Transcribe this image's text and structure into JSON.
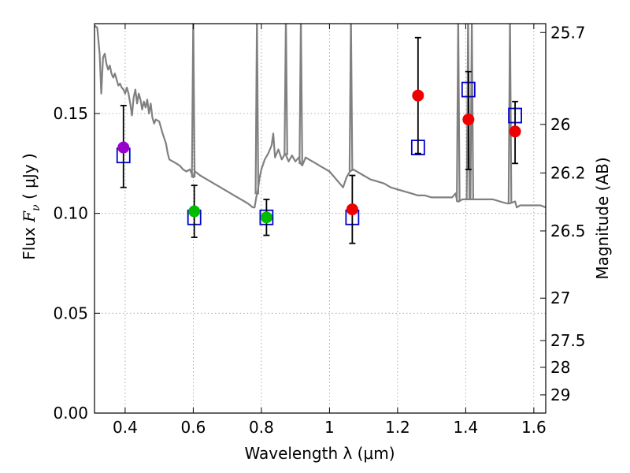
{
  "chart_data": {
    "type": "scatter",
    "xlabel": "Wavelength  λ (μm)",
    "ylabel_prefix": "Flux  ",
    "ylabel_math": "F",
    "ylabel_sub": "ν",
    "ylabel_suffix": " ( μJy )",
    "y2label": "Magnitude (AB)",
    "xlim": [
      0.31,
      1.635
    ],
    "ylim": [
      0.0,
      0.195
    ],
    "grid": true,
    "xticks": [
      0.4,
      0.6,
      0.8,
      1.0,
      1.2,
      1.4,
      1.6
    ],
    "xtick_labels": [
      "0.4",
      "0.6",
      "0.8",
      "1",
      "1.2",
      "1.4",
      "1.6"
    ],
    "yticks": [
      0.0,
      0.05,
      0.1,
      0.15
    ],
    "ytick_labels": [
      "0.00",
      "0.05",
      "0.10",
      "0.15"
    ],
    "magnitude_ticks": [
      25.7,
      26,
      26.2,
      26.5,
      27,
      27.5,
      28,
      29
    ],
    "magnitude_tick_labels": [
      "25.7",
      "26",
      "26.2",
      "26.5",
      "27",
      "27.5",
      "28",
      "29"
    ],
    "observed_points": [
      {
        "x": 0.395,
        "y": 0.133,
        "yerr_lo": 0.113,
        "yerr_hi": 0.154,
        "color": "#9900cc"
      },
      {
        "x": 0.603,
        "y": 0.101,
        "yerr_lo": 0.088,
        "yerr_hi": 0.114,
        "color": "#00bb00"
      },
      {
        "x": 0.815,
        "y": 0.098,
        "yerr_lo": 0.089,
        "yerr_hi": 0.107,
        "color": "#00bb00"
      },
      {
        "x": 1.067,
        "y": 0.102,
        "yerr_lo": 0.085,
        "yerr_hi": 0.119,
        "color": "#ee0000"
      },
      {
        "x": 1.26,
        "y": 0.159,
        "yerr_lo": 0.13,
        "yerr_hi": 0.188,
        "color": "#ee0000"
      },
      {
        "x": 1.408,
        "y": 0.147,
        "yerr_lo": 0.122,
        "yerr_hi": 0.171,
        "color": "#ee0000"
      },
      {
        "x": 1.545,
        "y": 0.141,
        "yerr_lo": 0.125,
        "yerr_hi": 0.156,
        "color": "#ee0000"
      }
    ],
    "model_points": [
      {
        "x": 0.395,
        "y": 0.129
      },
      {
        "x": 0.603,
        "y": 0.098
      },
      {
        "x": 0.815,
        "y": 0.098
      },
      {
        "x": 1.067,
        "y": 0.098
      },
      {
        "x": 1.26,
        "y": 0.133
      },
      {
        "x": 1.408,
        "y": 0.162
      },
      {
        "x": 1.545,
        "y": 0.149
      }
    ],
    "model_spectrum": [
      [
        0.31,
        0.194
      ],
      [
        0.318,
        0.193
      ],
      [
        0.325,
        0.18
      ],
      [
        0.33,
        0.16
      ],
      [
        0.335,
        0.178
      ],
      [
        0.34,
        0.18
      ],
      [
        0.345,
        0.175
      ],
      [
        0.35,
        0.172
      ],
      [
        0.355,
        0.174
      ],
      [
        0.36,
        0.17
      ],
      [
        0.365,
        0.168
      ],
      [
        0.37,
        0.17
      ],
      [
        0.375,
        0.167
      ],
      [
        0.38,
        0.164
      ],
      [
        0.385,
        0.165
      ],
      [
        0.39,
        0.163
      ],
      [
        0.395,
        0.162
      ],
      [
        0.4,
        0.16
      ],
      [
        0.405,
        0.163
      ],
      [
        0.41,
        0.16
      ],
      [
        0.415,
        0.155
      ],
      [
        0.42,
        0.149
      ],
      [
        0.425,
        0.158
      ],
      [
        0.43,
        0.162
      ],
      [
        0.435,
        0.155
      ],
      [
        0.44,
        0.16
      ],
      [
        0.445,
        0.157
      ],
      [
        0.45,
        0.152
      ],
      [
        0.455,
        0.156
      ],
      [
        0.46,
        0.153
      ],
      [
        0.465,
        0.157
      ],
      [
        0.47,
        0.15
      ],
      [
        0.475,
        0.155
      ],
      [
        0.48,
        0.148
      ],
      [
        0.485,
        0.145
      ],
      [
        0.49,
        0.147
      ],
      [
        0.5,
        0.146
      ],
      [
        0.51,
        0.14
      ],
      [
        0.52,
        0.135
      ],
      [
        0.525,
        0.13
      ],
      [
        0.53,
        0.127
      ],
      [
        0.54,
        0.126
      ],
      [
        0.55,
        0.125
      ],
      [
        0.56,
        0.124
      ],
      [
        0.57,
        0.122
      ],
      [
        0.58,
        0.121
      ],
      [
        0.59,
        0.122
      ],
      [
        0.6,
        0.118
      ],
      [
        0.605,
        0.121
      ],
      [
        0.62,
        0.119
      ],
      [
        0.64,
        0.117
      ],
      [
        0.66,
        0.115
      ],
      [
        0.68,
        0.113
      ],
      [
        0.7,
        0.111
      ],
      [
        0.72,
        0.109
      ],
      [
        0.74,
        0.107
      ],
      [
        0.76,
        0.105
      ],
      [
        0.775,
        0.103
      ],
      [
        0.78,
        0.103
      ],
      [
        0.785,
        0.108
      ],
      [
        0.79,
        0.112
      ],
      [
        0.795,
        0.118
      ],
      [
        0.8,
        0.122
      ],
      [
        0.81,
        0.127
      ],
      [
        0.82,
        0.13
      ],
      [
        0.83,
        0.134
      ],
      [
        0.835,
        0.14
      ],
      [
        0.84,
        0.128
      ],
      [
        0.85,
        0.132
      ],
      [
        0.86,
        0.127
      ],
      [
        0.87,
        0.13
      ],
      [
        0.88,
        0.126
      ],
      [
        0.89,
        0.129
      ],
      [
        0.9,
        0.126
      ],
      [
        0.91,
        0.128
      ],
      [
        0.915,
        0.125
      ],
      [
        0.92,
        0.124
      ],
      [
        0.925,
        0.126
      ],
      [
        0.93,
        0.128
      ],
      [
        0.94,
        0.127
      ],
      [
        0.95,
        0.126
      ],
      [
        0.96,
        0.125
      ],
      [
        0.97,
        0.124
      ],
      [
        0.98,
        0.123
      ],
      [
        0.99,
        0.122
      ],
      [
        1.0,
        0.121
      ],
      [
        1.01,
        0.119
      ],
      [
        1.02,
        0.117
      ],
      [
        1.03,
        0.115
      ],
      [
        1.04,
        0.113
      ],
      [
        1.05,
        0.118
      ],
      [
        1.06,
        0.121
      ],
      [
        1.07,
        0.122
      ],
      [
        1.08,
        0.121
      ],
      [
        1.1,
        0.119
      ],
      [
        1.12,
        0.117
      ],
      [
        1.14,
        0.116
      ],
      [
        1.16,
        0.115
      ],
      [
        1.18,
        0.113
      ],
      [
        1.2,
        0.112
      ],
      [
        1.22,
        0.111
      ],
      [
        1.24,
        0.11
      ],
      [
        1.26,
        0.109
      ],
      [
        1.28,
        0.109
      ],
      [
        1.3,
        0.108
      ],
      [
        1.32,
        0.108
      ],
      [
        1.34,
        0.108
      ],
      [
        1.36,
        0.108
      ],
      [
        1.37,
        0.11
      ],
      [
        1.375,
        0.106
      ],
      [
        1.38,
        0.106
      ],
      [
        1.39,
        0.107
      ],
      [
        1.4,
        0.107
      ],
      [
        1.41,
        0.107
      ],
      [
        1.42,
        0.107
      ],
      [
        1.44,
        0.107
      ],
      [
        1.46,
        0.107
      ],
      [
        1.48,
        0.107
      ],
      [
        1.5,
        0.106
      ],
      [
        1.52,
        0.105
      ],
      [
        1.53,
        0.105
      ],
      [
        1.545,
        0.106
      ],
      [
        1.55,
        0.103
      ],
      [
        1.56,
        0.104
      ],
      [
        1.58,
        0.104
      ],
      [
        1.6,
        0.104
      ],
      [
        1.62,
        0.104
      ],
      [
        1.635,
        0.103
      ]
    ],
    "emission_lines": [
      0.6,
      0.787,
      0.872,
      0.916,
      1.063,
      1.378,
      1.407,
      1.418,
      1.53
    ],
    "colors": {
      "spectrum": "#808080",
      "model_marker": "#0000cc",
      "errorbar": "#000000",
      "grid": "#999999"
    }
  }
}
